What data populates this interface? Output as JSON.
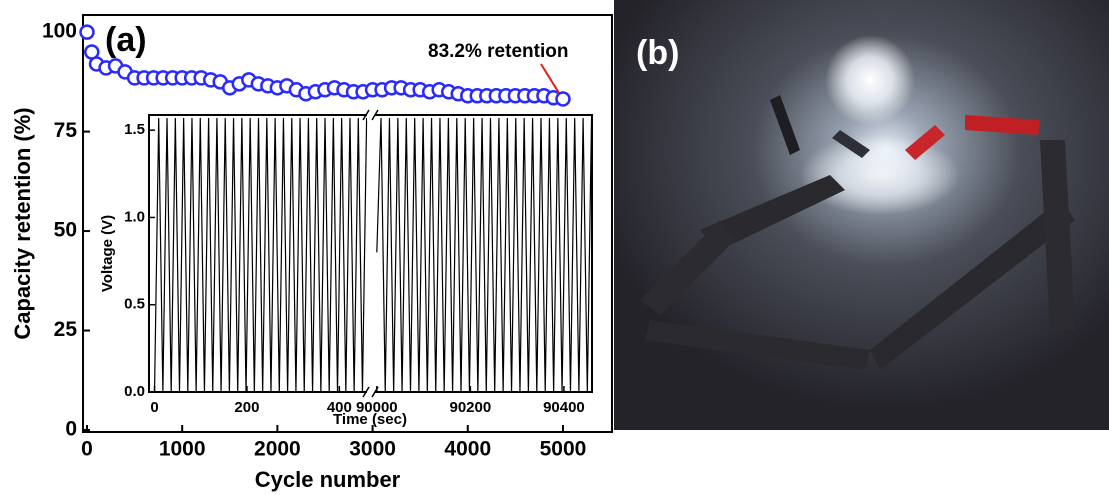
{
  "chart_data": [
    {
      "type": "scatter",
      "panel_label": "(a)",
      "xlabel": "Cycle number",
      "ylabel": "Capacity retention (%)",
      "annotation": "83.2% retention",
      "color": "#2a2aff",
      "xlim": [
        -42,
        5515
      ],
      "ylim": [
        -0.5,
        104.3
      ],
      "xticks": [
        0,
        1000,
        2000,
        3000,
        4000,
        5000
      ],
      "yticks": [
        0,
        25,
        50,
        75,
        100
      ],
      "x": [
        0,
        50,
        100,
        200,
        300,
        400,
        500,
        600,
        700,
        800,
        900,
        1000,
        1100,
        1200,
        1300,
        1400,
        1500,
        1600,
        1700,
        1800,
        1900,
        2000,
        2100,
        2200,
        2300,
        2400,
        2500,
        2600,
        2700,
        2800,
        2900,
        3000,
        3100,
        3200,
        3300,
        3400,
        3500,
        3600,
        3700,
        3800,
        3900,
        4000,
        4100,
        4200,
        4300,
        4400,
        4500,
        4600,
        4700,
        4800,
        4900,
        5000
      ],
      "values": [
        100,
        95,
        92,
        91,
        91.5,
        90,
        88.5,
        88.5,
        88.5,
        88.5,
        88.5,
        88.5,
        88.5,
        88.5,
        88,
        87.5,
        86,
        87,
        88,
        87,
        86.5,
        86,
        86.5,
        85.5,
        84.5,
        85,
        85.5,
        86,
        85.5,
        85,
        85,
        85.5,
        85.5,
        86,
        86,
        85.5,
        85.5,
        85,
        85.5,
        85,
        84.5,
        84,
        84,
        84,
        84,
        84,
        84,
        84,
        84,
        84,
        83.5,
        83.2
      ]
    },
    {
      "type": "line",
      "xlabel": "Time (sec)",
      "ylabel": "Voltage (V)",
      "color": "#000000",
      "ylim": [
        0,
        1.587
      ],
      "yticks": [
        {
          "value": 0,
          "label": "0.0"
        },
        0.5,
        {
          "value": 1,
          "label": "1.0"
        },
        1.5
      ],
      "segments": [
        {
          "xlim": [
            -12,
            462
          ],
          "xticks": [
            0,
            200,
            400
          ],
          "x": [
            0,
            9,
            18,
            27,
            36,
            45,
            54,
            63,
            72,
            81,
            90,
            99,
            108,
            117,
            126,
            135,
            144,
            153,
            162,
            171,
            180,
            189,
            198,
            207,
            216,
            225,
            234,
            243,
            252,
            261,
            270,
            279,
            288,
            297,
            306,
            315,
            324,
            333,
            342,
            351,
            360,
            369,
            378,
            387,
            396,
            405,
            414,
            423,
            432,
            441,
            450,
            459
          ],
          "values": [
            0,
            1.57,
            0,
            1.57,
            0,
            1.57,
            0,
            1.57,
            0,
            1.57,
            0,
            1.57,
            0,
            1.57,
            0,
            1.57,
            0,
            1.57,
            0,
            1.57,
            0,
            1.57,
            0,
            1.57,
            0,
            1.57,
            0,
            1.57,
            0,
            1.57,
            0,
            1.57,
            0,
            1.57,
            0,
            1.57,
            0,
            1.57,
            0,
            1.57,
            0,
            1.57,
            0,
            1.57,
            0,
            1.57,
            0,
            1.57,
            0,
            1.57,
            0,
            1.57
          ]
        },
        {
          "xlim": [
            89994,
            90460
          ],
          "xticks": [
            90000,
            90200,
            90400
          ],
          "x": [
            90000,
            90009,
            90018,
            90027,
            90036,
            90045,
            90054,
            90063,
            90072,
            90081,
            90090,
            90099,
            90108,
            90117,
            90126,
            90135,
            90144,
            90153,
            90162,
            90171,
            90180,
            90189,
            90198,
            90207,
            90216,
            90225,
            90234,
            90243,
            90252,
            90261,
            90270,
            90279,
            90288,
            90297,
            90306,
            90315,
            90324,
            90333,
            90342,
            90351,
            90360,
            90369,
            90378,
            90387,
            90396,
            90405,
            90414,
            90423,
            90432,
            90441,
            90450,
            90459
          ],
          "values": [
            0.8,
            1.57,
            0,
            1.57,
            0,
            1.57,
            0,
            1.57,
            0,
            1.57,
            0,
            1.57,
            0,
            1.57,
            0,
            1.57,
            0,
            1.57,
            0,
            1.57,
            0,
            1.57,
            0,
            1.57,
            0,
            1.57,
            0,
            1.57,
            0,
            1.57,
            0,
            1.57,
            0,
            1.57,
            0,
            1.57,
            0,
            1.57,
            0,
            1.57,
            0,
            1.57,
            0,
            1.57,
            0,
            1.57,
            0,
            1.57,
            0,
            1.57,
            0,
            1.57
          ]
        }
      ]
    }
  ],
  "photo": {
    "label": "(b)"
  }
}
